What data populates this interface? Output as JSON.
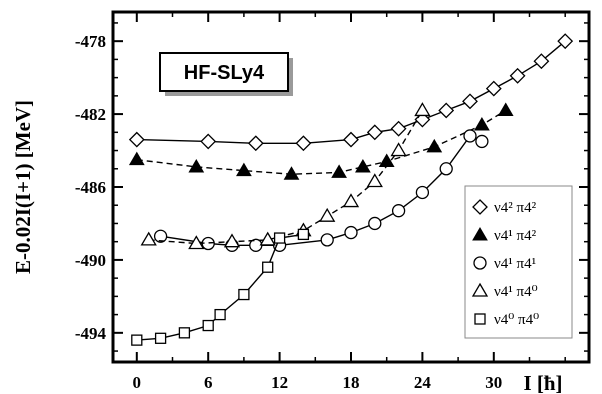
{
  "chart_data": {
    "type": "line",
    "title": "HF-SLy4",
    "xlabel": "I [ħ]",
    "ylabel": "E-0.02I(I+1) [MeV]",
    "xlim": [
      -2,
      38
    ],
    "ylim": [
      -495.6,
      -476.4
    ],
    "xticks": [
      0,
      6,
      12,
      18,
      24,
      30
    ],
    "yticks": [
      -478,
      -482,
      -486,
      -490,
      -494
    ],
    "grid": false,
    "legend_position": "bottom-right",
    "series": [
      {
        "name": "ν4² π4²",
        "marker": "diamond-open",
        "line": "solid",
        "x": [
          0,
          6,
          10,
          14,
          18,
          20,
          22,
          24,
          26,
          28,
          30,
          32,
          34,
          36
        ],
        "y": [
          -483.4,
          -483.5,
          -483.6,
          -483.6,
          -483.4,
          -483.0,
          -482.8,
          -482.3,
          -481.8,
          -481.3,
          -480.6,
          -479.9,
          -479.1,
          -478.0
        ]
      },
      {
        "name": "ν4¹ π4²",
        "marker": "triangle-filled",
        "line": "dashed",
        "x": [
          0,
          5,
          9,
          13,
          17,
          19,
          21,
          25,
          29,
          31
        ],
        "y": [
          -484.5,
          -484.9,
          -485.1,
          -485.3,
          -485.2,
          -484.9,
          -484.6,
          -483.8,
          -482.6,
          -481.8
        ]
      },
      {
        "name": "ν4¹ π4¹",
        "marker": "circle-open",
        "line": "solid",
        "x": [
          2,
          6,
          8,
          10,
          12,
          16,
          18,
          20,
          22,
          24,
          26,
          28,
          29
        ],
        "y": [
          -488.7,
          -489.1,
          -489.2,
          -489.2,
          -489.2,
          -488.9,
          -488.5,
          -488.0,
          -487.3,
          -486.3,
          -485.0,
          -483.2,
          -483.5
        ]
      },
      {
        "name": "ν4¹ π4⁰",
        "marker": "triangle-open",
        "line": "dashed",
        "x": [
          1,
          5,
          8,
          11,
          14,
          16,
          18,
          20,
          22,
          24
        ],
        "y": [
          -488.9,
          -489.1,
          -489.0,
          -488.9,
          -488.4,
          -487.6,
          -486.8,
          -485.7,
          -484.0,
          -481.8
        ]
      },
      {
        "name": "ν4⁰ π4⁰",
        "marker": "square-open",
        "line": "solid",
        "x": [
          0,
          2,
          4,
          6,
          7,
          9,
          11,
          12,
          14
        ],
        "y": [
          -494.4,
          -494.3,
          -494.0,
          -493.6,
          -493.0,
          -491.9,
          -490.4,
          -488.8,
          -488.6
        ]
      }
    ]
  }
}
